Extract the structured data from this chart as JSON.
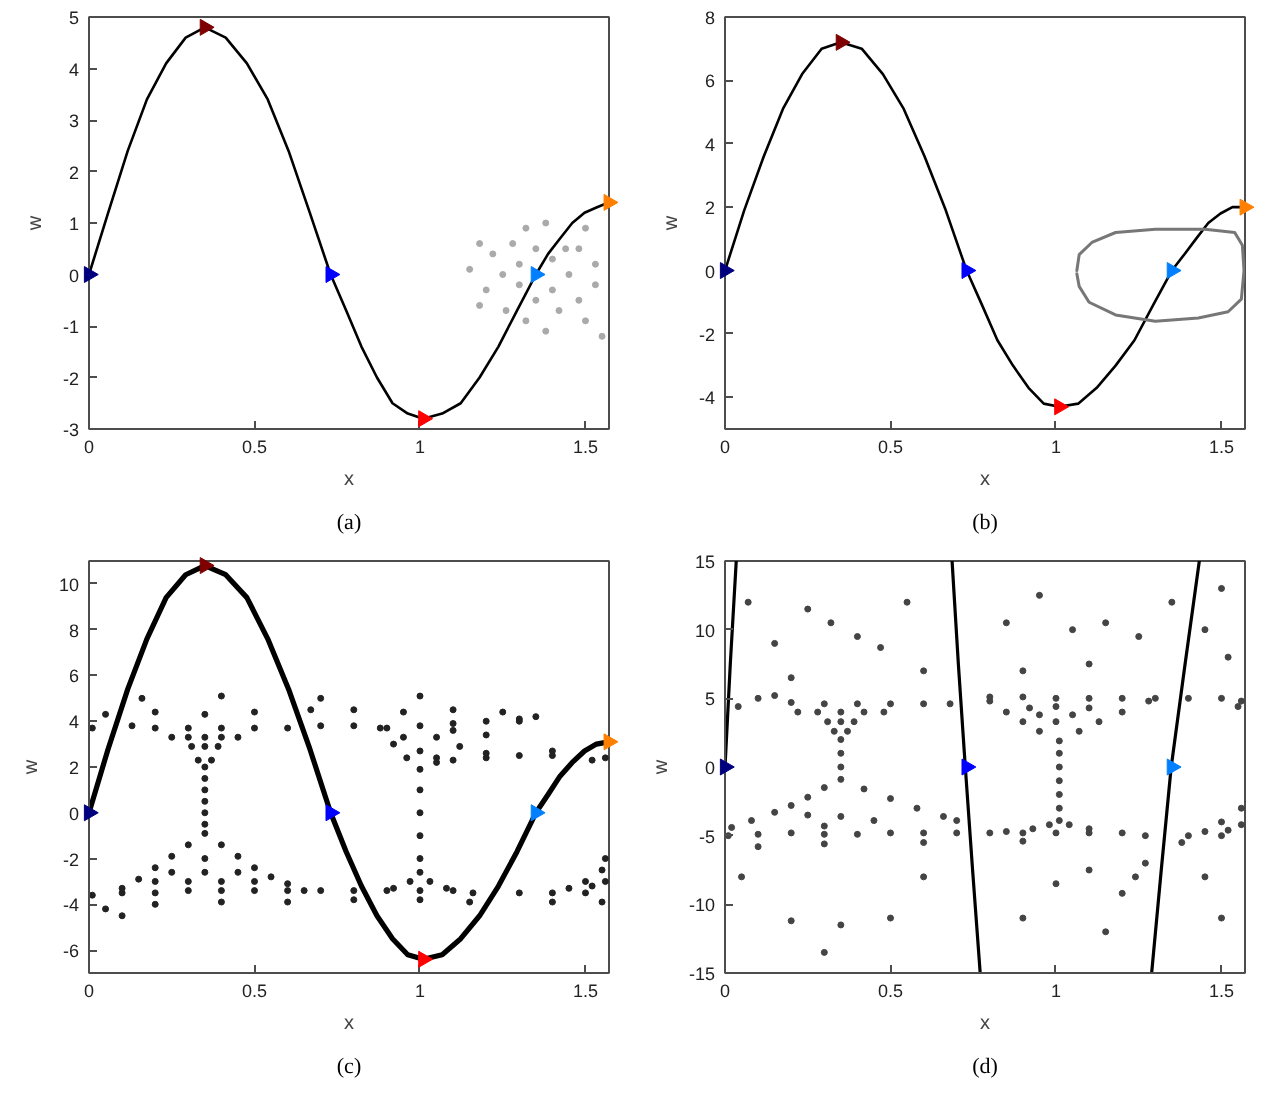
{
  "chart_data": [
    {
      "type": "line",
      "xlabel": "x",
      "ylabel": "w",
      "annotations": [
        "(a)"
      ],
      "xlim": [
        0,
        1.571
      ],
      "ylim": [
        -3,
        5
      ],
      "xticks": [
        0,
        0.5,
        1,
        1.5
      ],
      "yticks": [
        -3,
        -2,
        -1,
        0,
        1,
        2,
        3,
        4,
        5
      ],
      "series": [
        {
          "type": "scatter",
          "marker": "circle",
          "color": "#aaaaaa",
          "x": [
            1.15,
            1.2,
            1.22,
            1.25,
            1.26,
            1.28,
            1.3,
            1.3,
            1.32,
            1.32,
            1.38,
            1.38,
            1.4,
            1.4,
            1.44,
            1.42,
            1.45,
            1.48,
            1.48,
            1.5,
            1.5,
            1.53,
            1.53,
            1.55,
            1.18,
            1.18,
            1.35,
            1.35
          ],
          "values": [
            0.1,
            -0.3,
            0.4,
            0.0,
            -0.7,
            0.6,
            0.2,
            -0.2,
            -0.9,
            0.9,
            1.0,
            -1.1,
            0.3,
            -0.3,
            0.5,
            -0.7,
            0.0,
            0.5,
            -0.5,
            0.9,
            -0.9,
            0.2,
            -0.2,
            -1.2,
            0.6,
            -0.6,
            -0.5,
            0.5
          ]
        },
        {
          "color": "#000000",
          "x": [
            0,
            0.058,
            0.117,
            0.175,
            0.233,
            0.292,
            0.35,
            0.413,
            0.477,
            0.54,
            0.603,
            0.667,
            0.73,
            0.777,
            0.823,
            0.87,
            0.917,
            0.963,
            1.01,
            1.067,
            1.123,
            1.18,
            1.237,
            1.293,
            1.35,
            1.387,
            1.423,
            1.46,
            1.497,
            1.533,
            1.57
          ],
          "values": [
            0,
            1.2,
            2.4,
            3.4,
            4.1,
            4.6,
            4.8,
            4.6,
            4.1,
            3.4,
            2.4,
            1.2,
            0,
            -0.7,
            -1.4,
            -2.0,
            -2.5,
            -2.7,
            -2.8,
            -2.7,
            -2.5,
            -2.0,
            -1.4,
            -0.7,
            0,
            0.4,
            0.7,
            1.0,
            1.2,
            1.3,
            1.4
          ]
        },
        {
          "type": "scatter",
          "marker": "triangle",
          "colors": [
            "#00007f",
            "#7f0000",
            "#0000ff",
            "#ff0000",
            "#0080ff",
            "#ff8000"
          ],
          "x": [
            0,
            0.35,
            0.73,
            1.01,
            1.35,
            1.57
          ],
          "values": [
            0,
            4.8,
            0,
            -2.8,
            0,
            1.4
          ]
        }
      ]
    },
    {
      "type": "line",
      "xlabel": "x",
      "ylabel": "w",
      "annotations": [
        "(b)"
      ],
      "xlim": [
        0,
        1.571
      ],
      "ylim": [
        -5,
        8
      ],
      "xticks": [
        0,
        0.5,
        1,
        1.5
      ],
      "yticks": [
        -4,
        -2,
        0,
        2,
        4,
        6,
        8
      ],
      "series": [
        {
          "color": "#000000",
          "x": [
            0,
            0.058,
            0.117,
            0.175,
            0.233,
            0.292,
            0.35,
            0.413,
            0.477,
            0.54,
            0.603,
            0.667,
            0.73,
            0.777,
            0.823,
            0.87,
            0.917,
            0.963,
            1.01,
            1.067,
            1.123,
            1.18,
            1.237,
            1.293,
            1.35,
            1.387,
            1.423,
            1.46,
            1.497,
            1.533,
            1.57
          ],
          "values": [
            0,
            1.9,
            3.6,
            5.1,
            6.2,
            7.0,
            7.2,
            7.0,
            6.2,
            5.1,
            3.6,
            1.9,
            0,
            -1.1,
            -2.2,
            -3.0,
            -3.7,
            -4.2,
            -4.3,
            -4.2,
            -3.7,
            -3.0,
            -2.2,
            -1.1,
            0,
            0.5,
            1.0,
            1.5,
            1.8,
            2.0,
            2.0
          ]
        },
        {
          "color": "#777777",
          "x": [
            1.063,
            1.07,
            1.11,
            1.18,
            1.3,
            1.45,
            1.54,
            1.563,
            1.568,
            1.56,
            1.52,
            1.43,
            1.3,
            1.18,
            1.1,
            1.07,
            1.063
          ],
          "values": [
            0,
            0.5,
            0.9,
            1.2,
            1.3,
            1.3,
            1.2,
            0.8,
            0,
            -0.9,
            -1.3,
            -1.5,
            -1.6,
            -1.4,
            -1.0,
            -0.5,
            -0.1
          ]
        },
        {
          "type": "scatter",
          "marker": "triangle",
          "colors": [
            "#00007f",
            "#7f0000",
            "#0000ff",
            "#ff0000",
            "#0080ff",
            "#ff8000"
          ],
          "x": [
            0,
            0.35,
            0.73,
            1.01,
            1.35,
            1.57
          ],
          "values": [
            0,
            7.2,
            0,
            -4.3,
            0,
            2.0
          ]
        }
      ]
    },
    {
      "type": "line",
      "xlabel": "x",
      "ylabel": "w",
      "annotations": [
        "(c)"
      ],
      "xlim": [
        0,
        1.571
      ],
      "ylim": [
        -7,
        11
      ],
      "xticks": [
        0,
        0.5,
        1,
        1.5
      ],
      "yticks": [
        -6,
        -4,
        -2,
        0,
        2,
        4,
        6,
        8,
        10
      ],
      "series": [
        {
          "type": "scatter",
          "marker": "circle",
          "color": "#222222",
          "x": [
            0.01,
            0.13,
            0.2,
            0.3,
            0.4,
            0.5,
            0.6,
            0.7,
            0.8,
            0.9,
            1.0,
            1.1,
            1.2,
            1.3,
            0.05,
            0.2,
            0.35,
            0.5,
            0.67,
            0.8,
            0.95,
            1.1,
            1.25,
            1.35,
            0.16,
            0.4,
            0.7,
            1.0,
            0.25,
            0.3,
            0.35,
            0.4,
            0.45,
            0.31,
            0.35,
            0.39,
            0.33,
            0.37,
            0.35,
            0.35,
            0.35,
            0.35,
            0.35,
            0.35,
            0.35,
            0.3,
            0.25,
            0.2,
            0.15,
            0.1,
            0.4,
            0.45,
            0.5,
            0.55,
            0.6,
            0.65,
            0.25,
            0.35,
            0.45,
            0.2,
            0.3,
            0.4,
            0.5,
            0.35,
            0.01,
            0.1,
            0.2,
            0.3,
            0.4,
            0.5,
            0.6,
            0.7,
            0.8,
            0.9,
            1.0,
            1.1,
            1.16,
            1.3,
            1.4,
            1.5,
            0.05,
            0.2,
            0.4,
            0.6,
            0.8,
            1.0,
            1.15,
            1.4,
            1.55,
            0.1,
            0.88,
            0.92,
            0.96,
            1.0,
            1.05,
            1.12,
            1.2,
            1.3,
            0.95,
            1.05,
            1.0,
            1.1,
            1.0,
            1.0,
            1.0,
            1.0,
            1.0,
            0.97,
            1.03,
            0.92,
            1.08,
            1.05,
            1.1,
            1.2,
            1.3,
            1.4,
            1.52,
            1.56,
            1.2,
            1.4,
            1.45,
            1.5,
            1.55,
            1.56,
            1.52,
            1.56
          ],
          "values": [
            3.7,
            3.8,
            3.7,
            3.7,
            3.7,
            3.7,
            3.7,
            3.8,
            3.8,
            3.7,
            3.8,
            3.9,
            4.0,
            4.1,
            4.3,
            4.4,
            4.3,
            4.4,
            4.5,
            4.5,
            4.4,
            4.5,
            4.4,
            4.2,
            5.0,
            5.1,
            5.0,
            5.1,
            3.3,
            3.3,
            3.3,
            3.3,
            3.3,
            2.9,
            2.9,
            2.9,
            2.3,
            2.3,
            2.0,
            1.5,
            1.0,
            0.5,
            0,
            -0.5,
            -0.9,
            -1.4,
            -1.9,
            -2.4,
            -2.9,
            -3.3,
            -1.4,
            -1.9,
            -2.4,
            -2.8,
            -3.1,
            -3.4,
            -2.6,
            -2.6,
            -2.6,
            -3.0,
            -3.0,
            -3.0,
            -3.0,
            -2.0,
            -3.6,
            -3.5,
            -3.5,
            -3.4,
            -3.4,
            -3.4,
            -3.4,
            -3.4,
            -3.4,
            -3.4,
            -3.4,
            -3.4,
            -3.5,
            -3.5,
            -3.5,
            -3.5,
            -4.2,
            -4.0,
            -3.9,
            -3.9,
            -3.8,
            -3.8,
            -3.9,
            -3.9,
            -3.9,
            -4.5,
            3.7,
            3.0,
            2.4,
            1.9,
            2.4,
            2.9,
            3.4,
            4.0,
            3.3,
            3.3,
            2.7,
            3.6,
            1.0,
            0,
            -1.0,
            -2.0,
            -2.6,
            -3.0,
            -3.0,
            -3.3,
            -3.3,
            2.2,
            2.3,
            2.4,
            2.5,
            2.5,
            2.3,
            2.4,
            2.6,
            2.7,
            -3.3,
            -3.0,
            -2.5,
            -2.0,
            -3.2,
            -3.0
          ]
        },
        {
          "color": "#000000",
          "x": [
            0,
            0.058,
            0.117,
            0.175,
            0.233,
            0.292,
            0.35,
            0.413,
            0.477,
            0.54,
            0.603,
            0.667,
            0.73,
            0.777,
            0.823,
            0.87,
            0.917,
            0.963,
            1.01,
            1.067,
            1.123,
            1.18,
            1.237,
            1.293,
            1.35,
            1.387,
            1.423,
            1.46,
            1.497,
            1.533,
            1.57
          ],
          "values": [
            0,
            2.8,
            5.4,
            7.6,
            9.4,
            10.4,
            10.8,
            10.4,
            9.4,
            7.6,
            5.4,
            2.8,
            0,
            -1.7,
            -3.2,
            -4.5,
            -5.5,
            -6.2,
            -6.4,
            -6.2,
            -5.5,
            -4.5,
            -3.2,
            -1.7,
            0,
            0.8,
            1.6,
            2.2,
            2.7,
            3.0,
            3.1
          ]
        },
        {
          "type": "scatter",
          "marker": "triangle",
          "colors": [
            "#00007f",
            "#7f0000",
            "#0000ff",
            "#ff0000",
            "#0080ff",
            "#ff8000"
          ],
          "x": [
            0,
            0.35,
            0.73,
            1.01,
            1.35,
            1.57
          ],
          "values": [
            0,
            10.8,
            0,
            -6.4,
            0,
            3.1
          ]
        }
      ]
    },
    {
      "type": "line",
      "xlabel": "x",
      "ylabel": "w",
      "annotations": [
        "(d)"
      ],
      "xlim": [
        0,
        1.571
      ],
      "ylim": [
        -15,
        15
      ],
      "xticks": [
        0,
        0.5,
        1,
        1.5
      ],
      "yticks": [
        -15,
        -10,
        -5,
        0,
        5,
        10,
        15
      ],
      "series": [
        {
          "type": "scatter",
          "marker": "circle",
          "color": "#444444",
          "x": [
            0.07,
            0.15,
            0.25,
            0.32,
            0.4,
            0.47,
            0.55,
            0.6,
            0.2,
            0.85,
            0.95,
            1.05,
            1.15,
            1.25,
            1.35,
            1.45,
            1.52,
            0.9,
            1.1,
            1.5,
            0.04,
            0.1,
            0.15,
            0.2,
            0.3,
            0.4,
            0.5,
            0.6,
            0.68,
            0.8,
            0.9,
            1.0,
            1.1,
            1.2,
            1.3,
            1.4,
            1.5,
            1.56,
            1.55,
            0.22,
            0.28,
            0.35,
            0.42,
            0.48,
            0.31,
            0.35,
            0.39,
            0.33,
            0.37,
            0.35,
            0.35,
            0.35,
            0.35,
            0.3,
            0.25,
            0.2,
            0.15,
            0.08,
            0.02,
            0.42,
            0.5,
            0.58,
            0.66,
            0.7,
            0.85,
            0.25,
            0.35,
            0.45,
            0.3,
            0.01,
            0.1,
            0.2,
            0.3,
            0.4,
            0.5,
            0.6,
            0.7,
            0.8,
            0.9,
            1.0,
            1.1,
            1.2,
            1.27,
            1.4,
            1.5,
            0.1,
            0.3,
            0.6,
            0.9,
            0.8,
            0.85,
            0.9,
            0.95,
            1.01,
            1.07,
            1.13,
            1.2,
            1.28,
            0.92,
            1.0,
            1.1,
            1.0,
            0.95,
            1.05,
            1.01,
            1.01,
            1.01,
            1.01,
            1.01,
            1.01,
            0.98,
            1.04,
            0.93,
            1.1,
            1.38,
            1.45,
            1.5,
            1.56,
            1.52,
            1.56,
            1.2,
            1.24,
            1.27,
            0.05,
            0.2,
            0.35,
            0.5,
            0.6,
            0.9,
            1.0,
            1.1,
            1.15,
            1.45,
            1.5,
            0.3
          ],
          "values": [
            12,
            9,
            11.5,
            10.5,
            9.5,
            8.7,
            12,
            7,
            6.5,
            10.5,
            12.5,
            10,
            10.5,
            9.5,
            12,
            10,
            8,
            7,
            7.5,
            13,
            4.4,
            5.0,
            5.2,
            4.7,
            4.6,
            4.6,
            4.6,
            4.6,
            4.6,
            5.1,
            5.1,
            5.0,
            5.0,
            5.0,
            5.0,
            5.0,
            5.0,
            4.8,
            4.4,
            4.0,
            4.0,
            4.0,
            4.0,
            4.0,
            3.3,
            3.3,
            3.3,
            2.6,
            2.6,
            2.0,
            1.0,
            0,
            -0.9,
            -1.5,
            -2.2,
            -2.8,
            -3.3,
            -3.9,
            -4.4,
            -1.6,
            -2.3,
            -3.0,
            -3.6,
            -3.9,
            -4.7,
            -3.5,
            -3.6,
            -3.9,
            -4.3,
            -5.0,
            -4.9,
            -4.8,
            -4.9,
            -4.9,
            -4.8,
            -4.8,
            -4.8,
            -4.8,
            -4.8,
            -4.8,
            -4.8,
            -4.8,
            -5.0,
            -5.0,
            -5.0,
            -5.8,
            -5.6,
            -5.5,
            -5.4,
            4.8,
            4.0,
            3.3,
            2.6,
            1.9,
            2.6,
            3.3,
            4.0,
            4.8,
            4.3,
            4.4,
            4.3,
            3.3,
            3.8,
            3.8,
            1.0,
            0,
            -1.0,
            -2.0,
            -3.0,
            -3.9,
            -4.2,
            -4.2,
            -4.5,
            -4.5,
            -5.5,
            -4.7,
            -4.0,
            -3.0,
            -4.6,
            -4.2,
            -9.2,
            -8.0,
            -7.0,
            -8,
            -11.2,
            -11.5,
            -11,
            -8,
            -11,
            -8.5,
            -7.5,
            -12,
            -8,
            -11,
            -13.5
          ]
        },
        {
          "color": "#000000",
          "x": [
            0,
            0.016,
            0.034,
            0.35,
            0.686,
            0.705,
            0.726,
            0.748,
            0.771,
            1.0,
            1.289,
            1.318,
            1.348,
            1.39,
            1.433
          ],
          "values": [
            0,
            7.5,
            15,
            null,
            15,
            7.5,
            0,
            -7.5,
            -15,
            null,
            -15,
            -7.5,
            0,
            7.5,
            15
          ]
        },
        {
          "type": "scatter",
          "marker": "triangle",
          "colors": [
            "#00007f",
            "#0000ff",
            "#0080ff"
          ],
          "x": [
            0,
            0.73,
            1.35
          ],
          "values": [
            0,
            0,
            0
          ]
        }
      ]
    }
  ]
}
